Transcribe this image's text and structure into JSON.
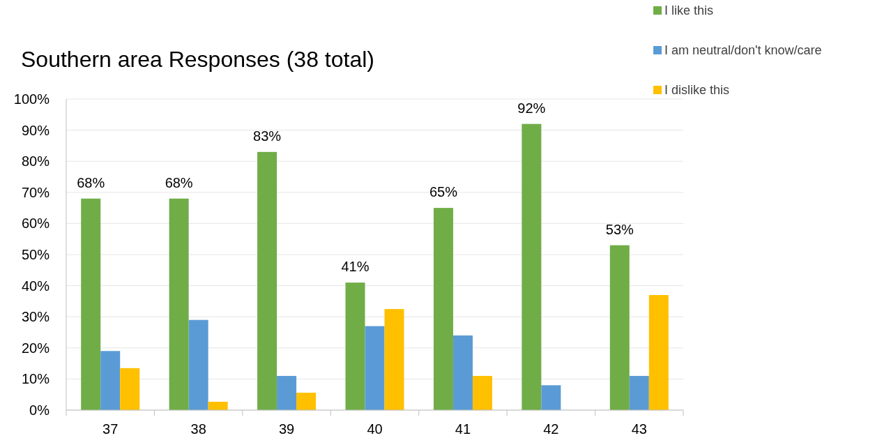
{
  "chart_data": {
    "type": "bar",
    "title": "Southern area Responses (38 total)",
    "categories": [
      "37",
      "38",
      "39",
      "40",
      "41",
      "42",
      "43"
    ],
    "series": [
      {
        "name": "I like this",
        "color": "#70ad47",
        "values": [
          68,
          68,
          83,
          41,
          65,
          92,
          53
        ],
        "value_labels": [
          "68%",
          "68%",
          "83%",
          "41%",
          "65%",
          "92%",
          "53%"
        ]
      },
      {
        "name": "I am neutral/don't know/care",
        "color": "#5b9bd5",
        "values": [
          19,
          29,
          11,
          27,
          24,
          8,
          11
        ]
      },
      {
        "name": "I dislike this",
        "color": "#ffc000",
        "values": [
          13.5,
          2.7,
          5.6,
          32.5,
          11,
          0,
          37
        ]
      }
    ],
    "ylim": [
      0,
      100
    ],
    "yticks": [
      {
        "value": 0,
        "label": "0%"
      },
      {
        "value": 10,
        "label": "10%"
      },
      {
        "value": 20,
        "label": "20%"
      },
      {
        "value": 30,
        "label": "30%"
      },
      {
        "value": 40,
        "label": "40%"
      },
      {
        "value": 50,
        "label": "50%"
      },
      {
        "value": 60,
        "label": "60%"
      },
      {
        "value": 70,
        "label": "70%"
      },
      {
        "value": 80,
        "label": "80%"
      },
      {
        "value": 90,
        "label": "90%"
      },
      {
        "value": 100,
        "label": "100%"
      }
    ],
    "grid": "y",
    "legend": "top right"
  }
}
